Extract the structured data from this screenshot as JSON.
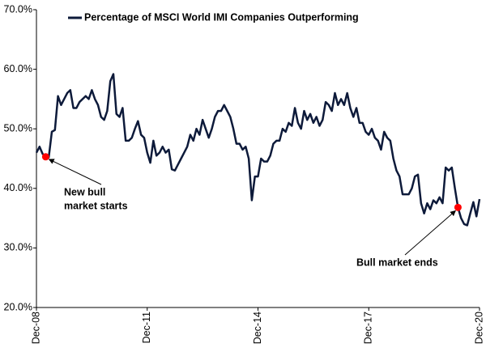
{
  "chart_data": {
    "type": "line",
    "ylim": [
      20,
      70
    ],
    "yticks": [
      {
        "value": 20,
        "label": "20.0%"
      },
      {
        "value": 30,
        "label": "30.0%"
      },
      {
        "value": 40,
        "label": "40.0%"
      },
      {
        "value": 50,
        "label": "50.0%"
      },
      {
        "value": 60,
        "label": "60.0%"
      },
      {
        "value": 70,
        "label": "70.0%"
      }
    ],
    "grid": false,
    "legend": "top-left",
    "categories": [
      "Dec-08",
      null,
      null,
      null,
      null,
      null,
      null,
      null,
      null,
      null,
      null,
      null,
      null,
      null,
      null,
      null,
      null,
      null,
      null,
      null,
      null,
      null,
      null,
      null,
      null,
      null,
      null,
      null,
      null,
      null,
      null,
      null,
      null,
      null,
      null,
      null,
      "Dec-11",
      null,
      null,
      null,
      null,
      null,
      null,
      null,
      null,
      null,
      null,
      null,
      null,
      null,
      null,
      null,
      null,
      null,
      null,
      null,
      null,
      null,
      null,
      null,
      null,
      null,
      null,
      null,
      null,
      null,
      null,
      null,
      null,
      null,
      null,
      null,
      "Dec-14",
      null,
      null,
      null,
      null,
      null,
      null,
      null,
      null,
      null,
      null,
      null,
      null,
      null,
      null,
      null,
      null,
      null,
      null,
      null,
      null,
      null,
      null,
      null,
      null,
      null,
      null,
      null,
      null,
      null,
      null,
      null,
      null,
      null,
      null,
      null,
      "Dec-17",
      null,
      null,
      null,
      null,
      null,
      null,
      null,
      null,
      null,
      null,
      null,
      null,
      null,
      null,
      null,
      null,
      null,
      null,
      null,
      null,
      null,
      null,
      null,
      null,
      null,
      null,
      null,
      null,
      null,
      null,
      null,
      null,
      null,
      null,
      null,
      "Dec-20"
    ],
    "series": [
      {
        "name": "Percentage of MSCI World IMI Companies Outperforming",
        "color": "#0d1a3a",
        "values": [
          46.0,
          47.0,
          45.8,
          45.3,
          45.2,
          49.5,
          49.8,
          55.5,
          54.0,
          55.0,
          56.0,
          56.5,
          53.5,
          53.5,
          54.5,
          55.0,
          55.5,
          55.0,
          56.5,
          55.0,
          54.0,
          52.0,
          51.5,
          53.0,
          58.0,
          59.2,
          52.5,
          52.0,
          53.5,
          48.0,
          48.0,
          48.5,
          50.0,
          51.3,
          49.0,
          48.5,
          46.0,
          44.3,
          48.0,
          45.5,
          46.0,
          47.0,
          46.0,
          46.5,
          43.2,
          43.0,
          44.0,
          45.0,
          46.0,
          47.0,
          49.0,
          48.0,
          50.0,
          49.0,
          51.5,
          50.0,
          48.5,
          50.0,
          52.0,
          53.0,
          53.0,
          54.0,
          53.0,
          52.0,
          50.0,
          47.5,
          47.5,
          46.5,
          47.0,
          45.0,
          38.0,
          42.0,
          42.0,
          45.0,
          44.5,
          44.5,
          45.5,
          47.5,
          48.0,
          48.0,
          50.0,
          49.5,
          51.0,
          50.5,
          53.5,
          51.0,
          50.0,
          53.0,
          51.5,
          52.5,
          51.0,
          52.0,
          50.5,
          51.5,
          54.5,
          54.0,
          53.0,
          56.0,
          54.0,
          55.0,
          54.0,
          56.0,
          53.5,
          52.0,
          53.5,
          51.0,
          51.0,
          49.5,
          49.0,
          50.0,
          48.5,
          48.0,
          46.5,
          49.5,
          48.5,
          48.0,
          45.0,
          43.0,
          42.0,
          39.0,
          39.0,
          39.0,
          40.0,
          42.0,
          42.3,
          37.5,
          35.8,
          37.5,
          36.5,
          38.0,
          37.5,
          38.5,
          37.5,
          43.5,
          43.0,
          43.5,
          40.0,
          36.8,
          35.0,
          34.0,
          33.8,
          35.8,
          37.7,
          35.3,
          38.2
        ]
      }
    ],
    "annotations": [
      {
        "text": [
          "New bull",
          "market starts"
        ],
        "value": 45.3,
        "color": "#ff0000"
      },
      {
        "text": [
          "Bull market ends"
        ],
        "value": 36.8,
        "color": "#ff0000"
      }
    ]
  }
}
